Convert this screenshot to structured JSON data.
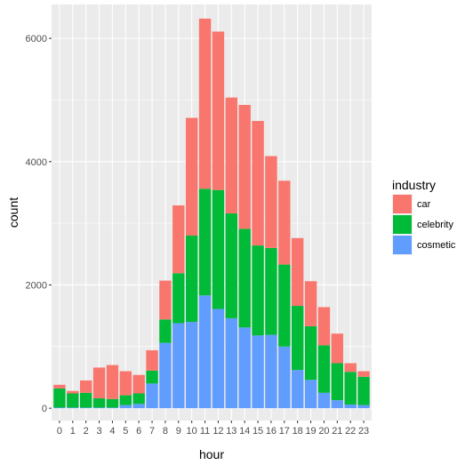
{
  "chart_data": {
    "type": "bar",
    "stacked": true,
    "xlabel": "hour",
    "ylabel": "count",
    "categories": [
      "0",
      "1",
      "2",
      "3",
      "4",
      "5",
      "6",
      "7",
      "8",
      "9",
      "10",
      "11",
      "12",
      "13",
      "14",
      "15",
      "16",
      "17",
      "18",
      "19",
      "20",
      "21",
      "22",
      "23"
    ],
    "series": [
      {
        "name": "cosmetic",
        "color": "#619CFF",
        "values": [
          10,
          10,
          10,
          10,
          10,
          50,
          70,
          400,
          1060,
          1380,
          1400,
          1830,
          1610,
          1460,
          1310,
          1180,
          1190,
          1000,
          620,
          460,
          250,
          130,
          60,
          50
        ]
      },
      {
        "name": "celebrity",
        "color": "#00BA38",
        "values": [
          310,
          230,
          240,
          150,
          140,
          160,
          170,
          210,
          380,
          810,
          1400,
          1730,
          1930,
          1700,
          1600,
          1460,
          1410,
          1330,
          1040,
          870,
          770,
          600,
          530,
          460
        ]
      },
      {
        "name": "car",
        "color": "#F8766D",
        "values": [
          60,
          40,
          200,
          500,
          550,
          390,
          300,
          330,
          630,
          1100,
          1910,
          2760,
          2570,
          1880,
          2010,
          2020,
          1490,
          1360,
          1100,
          730,
          620,
          480,
          140,
          90
        ]
      }
    ],
    "legend_order": [
      "car",
      "celebrity",
      "cosmetic"
    ],
    "ylim": [
      -200,
      6550
    ],
    "yticks": [
      0,
      2000,
      4000,
      6000
    ],
    "grid": true,
    "legend": {
      "title": "industry",
      "position": "right"
    },
    "panel_background": "#EBEBEB",
    "grid_color": "#FFFFFF"
  }
}
